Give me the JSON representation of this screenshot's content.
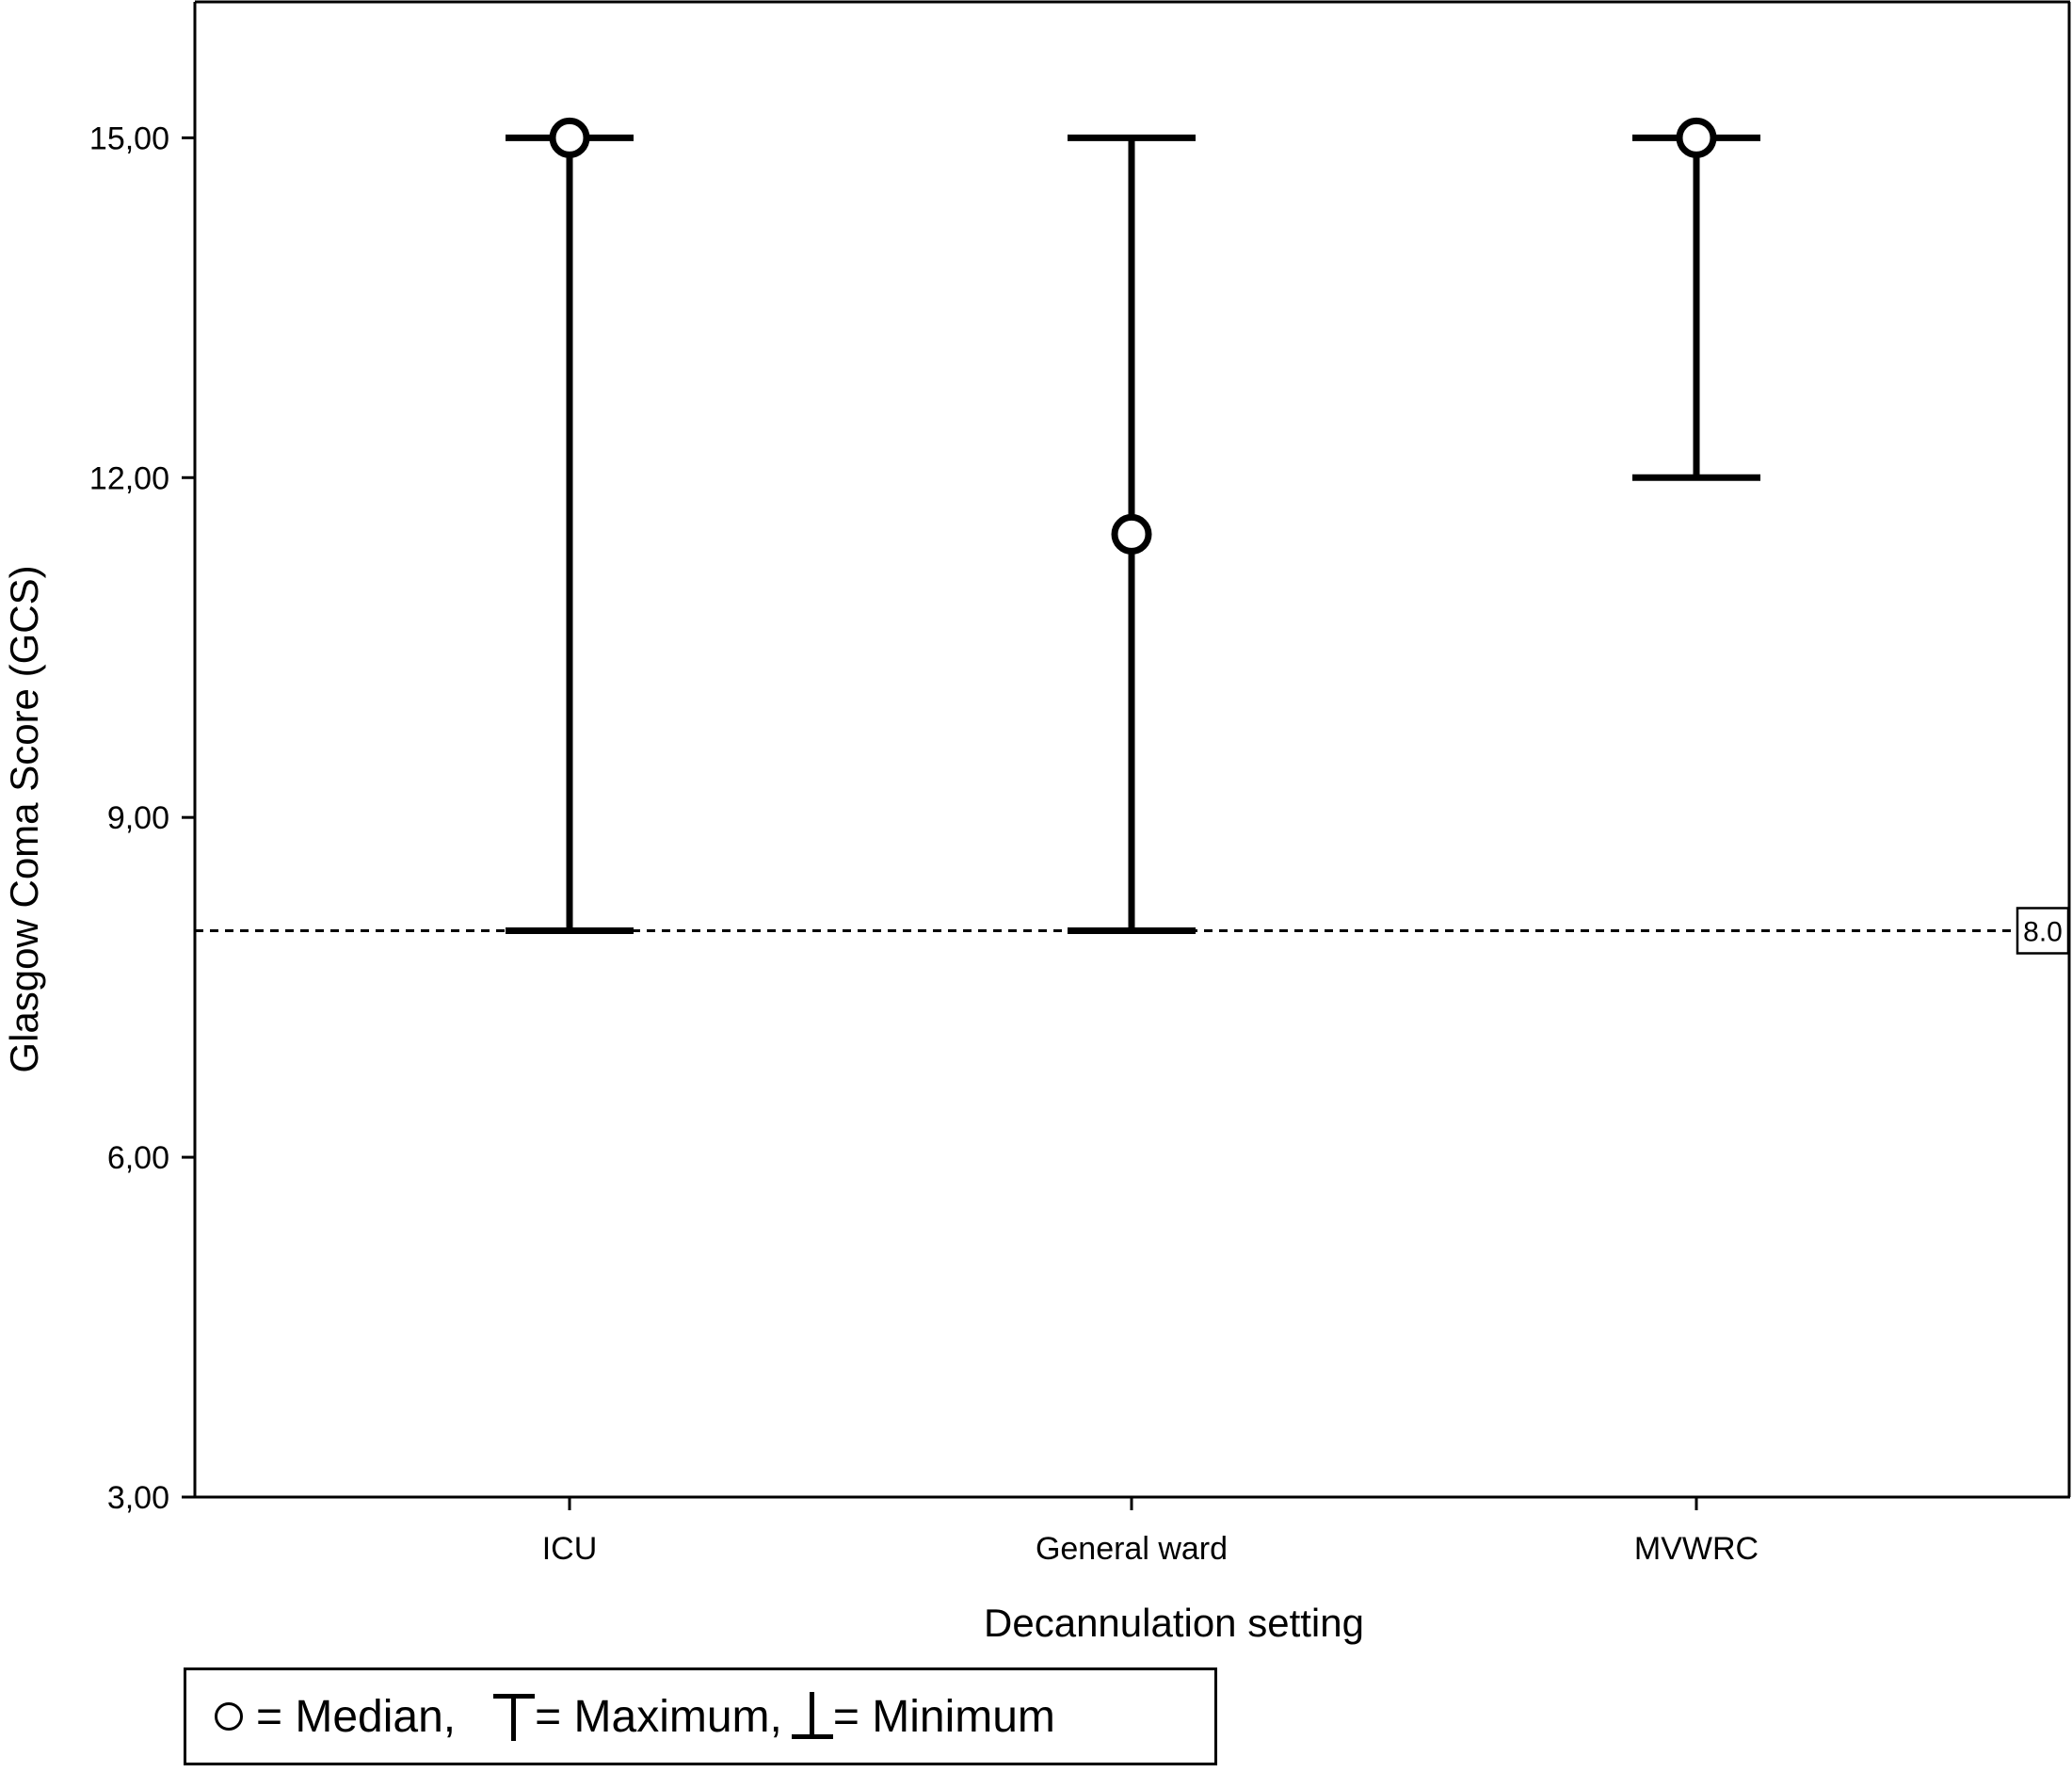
{
  "chart_data": {
    "type": "errorbar",
    "xlabel": "Decannulation setting",
    "ylabel": "Glasgow Coma Score (GCS)",
    "categories": [
      "ICU",
      "General ward",
      "MVWRC"
    ],
    "median": [
      15,
      11.5,
      15
    ],
    "max": [
      15,
      15,
      15
    ],
    "min": [
      8,
      8,
      12
    ],
    "ylim": [
      3,
      16.2
    ],
    "yticks": [
      3,
      6,
      9,
      12,
      15
    ],
    "ytick_labels": [
      "3,00",
      "6,00",
      "9,00",
      "12,00",
      "15,00"
    ],
    "reference_line": {
      "y": 8.0,
      "label": "8.0",
      "style": "dashed"
    },
    "grid": false
  },
  "legend": {
    "median_label": "= Median,",
    "max_label": "= Maximum,",
    "min_label": "=  Minimum"
  }
}
